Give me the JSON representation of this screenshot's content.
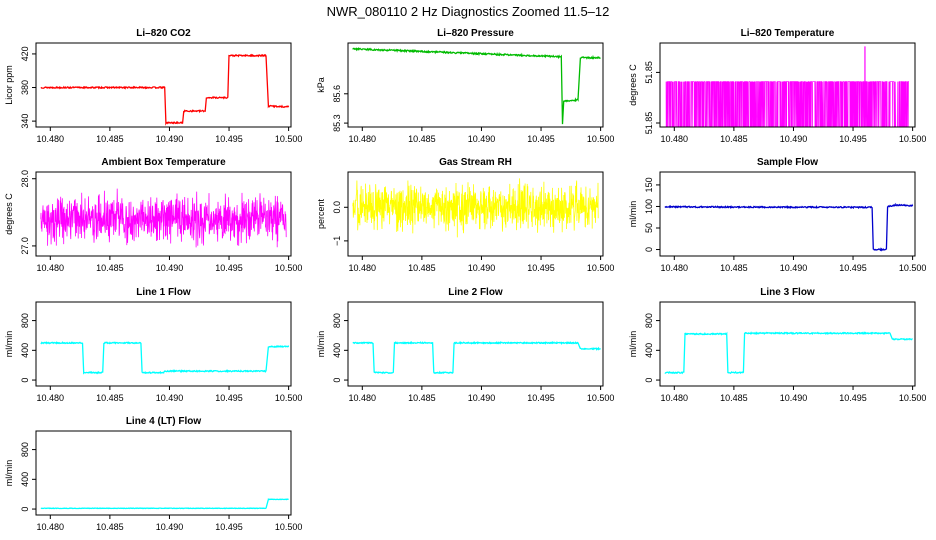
{
  "page": {
    "title": "NWR_080110  2 Hz Diagnostics Zoomed 11.5–12"
  },
  "chart_data": [
    {
      "type": "line",
      "id": "co2",
      "title": "Li–820 CO2",
      "ylabel": "Licor ppm",
      "color": "#ff0000",
      "xlim": [
        10.4788,
        10.5002
      ],
      "ylim": [
        333,
        433
      ],
      "xticks": [
        10.48,
        10.485,
        10.49,
        10.495,
        10.5
      ],
      "xtick_labels": [
        "10.480",
        "10.485",
        "10.490",
        "10.495",
        "10.500"
      ],
      "yticks": [
        340,
        380,
        420
      ],
      "ytick_labels": [
        "340",
        "380",
        "420"
      ],
      "noise": 0.8,
      "x": [
        10.4792,
        10.4896,
        10.4897,
        10.4911,
        10.4912,
        10.493,
        10.4931,
        10.4949,
        10.495,
        10.4981,
        10.4983,
        10.5
      ],
      "y": [
        380,
        380,
        338,
        338,
        352,
        352,
        368,
        368,
        418,
        418,
        358,
        357
      ]
    },
    {
      "type": "line",
      "id": "pressure",
      "title": "Li–820 Pressure",
      "ylabel": "kPa",
      "color": "#00bb00",
      "xlim": [
        10.4788,
        10.5002
      ],
      "ylim": [
        85.26,
        86.12
      ],
      "xticks": [
        10.48,
        10.485,
        10.49,
        10.495,
        10.5
      ],
      "xtick_labels": [
        "10.480",
        "10.485",
        "10.490",
        "10.495",
        "10.500"
      ],
      "yticks": [
        85.3,
        85.6
      ],
      "ytick_labels": [
        "85.3",
        "85.6"
      ],
      "noise": 0.008,
      "x": [
        10.4792,
        10.4965,
        10.4967,
        10.4968,
        10.4969,
        10.4981,
        10.4983,
        10.5
      ],
      "y": [
        86.06,
        85.98,
        85.98,
        85.29,
        85.52,
        85.54,
        85.97,
        85.97
      ]
    },
    {
      "type": "line",
      "id": "temperature",
      "title": "Li–820 Temperature",
      "ylabel": "degrees C",
      "color": "#ff00ff",
      "xlim": [
        10.4788,
        10.5002
      ],
      "ylim": [
        51.8475,
        51.8525
      ],
      "xticks": [
        10.48,
        10.485,
        10.49,
        10.495,
        10.5
      ],
      "xtick_labels": [
        "10.480",
        "10.485",
        "10.490",
        "10.495",
        "10.500"
      ],
      "yticks": [
        51.85,
        51.85
      ],
      "ytick_labels": [
        "51.85",
        "51.85"
      ],
      "style": "binary",
      "x_start": 10.4793,
      "x_end": 10.4997,
      "y_low": 51.8475,
      "y_high": 51.8502,
      "spike_x": 10.496,
      "spike_y": 51.8523
    },
    {
      "type": "line",
      "id": "ambient-box-temperature",
      "title": "Ambient Box Temperature",
      "ylabel": "degrees C",
      "color": "#ff00ff",
      "xlim": [
        10.4788,
        10.5002
      ],
      "ylim": [
        26.85,
        28.1
      ],
      "xticks": [
        10.48,
        10.485,
        10.49,
        10.495,
        10.5
      ],
      "xtick_labels": [
        "10.480",
        "10.485",
        "10.490",
        "10.495",
        "10.500"
      ],
      "yticks": [
        27.0,
        28.0
      ],
      "ytick_labels": [
        "27.0",
        "28.0"
      ],
      "style": "noise",
      "x_start": 10.4792,
      "x_end": 10.4998,
      "mean": 27.4,
      "amp": 0.22
    },
    {
      "type": "line",
      "id": "gas-stream-rh",
      "title": "Gas Stream RH",
      "ylabel": "percent",
      "color": "#ffff00",
      "xlim": [
        10.4788,
        10.5002
      ],
      "ylim": [
        -1.45,
        1.05
      ],
      "xticks": [
        10.48,
        10.485,
        10.49,
        10.495,
        10.5
      ],
      "xtick_labels": [
        "10.480",
        "10.485",
        "10.490",
        "10.495",
        "10.500"
      ],
      "yticks": [
        -1.0,
        0.0
      ],
      "ytick_labels": [
        "−1",
        "0.0"
      ],
      "style": "noise",
      "x_start": 10.4792,
      "x_end": 10.4998,
      "mean": 0.0,
      "amp": 0.45
    },
    {
      "type": "line",
      "id": "sample-flow",
      "title": "Sample Flow",
      "ylabel": "ml/min",
      "color": "#0000cc",
      "xlim": [
        10.4788,
        10.5002
      ],
      "ylim": [
        -15,
        180
      ],
      "xticks": [
        10.48,
        10.485,
        10.49,
        10.495,
        10.5
      ],
      "xtick_labels": [
        "10.480",
        "10.485",
        "10.490",
        "10.495",
        "10.500"
      ],
      "yticks": [
        0,
        50,
        100,
        150
      ],
      "ytick_labels": [
        "0",
        "50",
        "100",
        "150"
      ],
      "noise": 1.5,
      "x": [
        10.4792,
        10.4966,
        10.4967,
        10.4978,
        10.4979,
        10.4985,
        10.4986,
        10.5
      ],
      "y": [
        99,
        98,
        0,
        0,
        100,
        102,
        103,
        102
      ]
    },
    {
      "type": "line",
      "id": "line-1-flow",
      "title": "Line 1 Flow",
      "ylabel": "ml/min",
      "color": "#00ffff",
      "xlim": [
        10.4788,
        10.5002
      ],
      "ylim": [
        -80,
        1050
      ],
      "xticks": [
        10.48,
        10.485,
        10.49,
        10.495,
        10.5
      ],
      "xtick_labels": [
        "10.480",
        "10.485",
        "10.490",
        "10.495",
        "10.500"
      ],
      "yticks": [
        0,
        400,
        800
      ],
      "ytick_labels": [
        "0",
        "400",
        "800"
      ],
      "noise": 8,
      "x": [
        10.4792,
        10.4827,
        10.4828,
        10.4844,
        10.4845,
        10.4876,
        10.4877,
        10.4895,
        10.4896,
        10.4981,
        10.4983,
        10.5
      ],
      "y": [
        500,
        500,
        100,
        100,
        500,
        500,
        100,
        100,
        120,
        120,
        450,
        450
      ]
    },
    {
      "type": "line",
      "id": "line-2-flow",
      "title": "Line 2 Flow",
      "ylabel": "ml/min",
      "color": "#00ffff",
      "xlim": [
        10.4788,
        10.5002
      ],
      "ylim": [
        -80,
        1050
      ],
      "xticks": [
        10.48,
        10.485,
        10.49,
        10.495,
        10.5
      ],
      "xtick_labels": [
        "10.480",
        "10.485",
        "10.490",
        "10.495",
        "10.500"
      ],
      "yticks": [
        0,
        400,
        800
      ],
      "ytick_labels": [
        "0",
        "400",
        "800"
      ],
      "noise": 8,
      "x": [
        10.4792,
        10.4809,
        10.481,
        10.4826,
        10.4827,
        10.4859,
        10.486,
        10.4876,
        10.4877,
        10.4981,
        10.4983,
        10.5
      ],
      "y": [
        500,
        500,
        100,
        100,
        500,
        500,
        100,
        100,
        500,
        500,
        420,
        420
      ]
    },
    {
      "type": "line",
      "id": "line-3-flow",
      "title": "Line 3 Flow",
      "ylabel": "ml/min",
      "color": "#00ffff",
      "xlim": [
        10.4788,
        10.5002
      ],
      "ylim": [
        -80,
        1050
      ],
      "xticks": [
        10.48,
        10.485,
        10.49,
        10.495,
        10.5
      ],
      "xtick_labels": [
        "10.480",
        "10.485",
        "10.490",
        "10.495",
        "10.500"
      ],
      "yticks": [
        0,
        400,
        800
      ],
      "ytick_labels": [
        "0",
        "400",
        "800"
      ],
      "noise": 8,
      "x": [
        10.4792,
        10.4808,
        10.4809,
        10.4844,
        10.4845,
        10.4858,
        10.4859,
        10.4981,
        10.4983,
        10.5
      ],
      "y": [
        100,
        100,
        620,
        620,
        100,
        100,
        630,
        630,
        550,
        550
      ]
    },
    {
      "type": "line",
      "id": "line-4-lt-flow",
      "title": "Line 4 (LT) Flow",
      "ylabel": "ml/min",
      "color": "#00ffff",
      "xlim": [
        10.4788,
        10.5002
      ],
      "ylim": [
        -80,
        1050
      ],
      "xticks": [
        10.48,
        10.485,
        10.49,
        10.495,
        10.5
      ],
      "xtick_labels": [
        "10.480",
        "10.485",
        "10.490",
        "10.495",
        "10.500"
      ],
      "yticks": [
        0,
        400,
        800
      ],
      "ytick_labels": [
        "0",
        "400",
        "800"
      ],
      "noise": 3,
      "x": [
        10.4792,
        10.4981,
        10.4983,
        10.5
      ],
      "y": [
        10,
        10,
        130,
        130
      ]
    }
  ]
}
